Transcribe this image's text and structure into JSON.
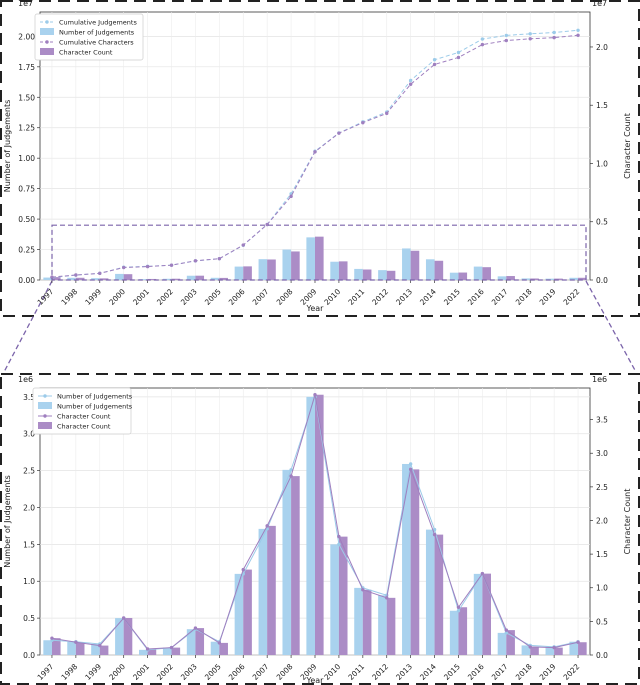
{
  "chart_data": [
    {
      "type": "bar",
      "xlabel": "Year",
      "ylabel": "Number of Judgements",
      "y2label": "Character Count",
      "y_scale_label": "1e7",
      "y2_scale_label": "1e7",
      "ylim": [
        0,
        2.2
      ],
      "y2lim": [
        0,
        2.3
      ],
      "y_ticks": [
        "0.00",
        "0.25",
        "0.50",
        "0.75",
        "1.00",
        "1.25",
        "1.50",
        "1.75",
        "2.00"
      ],
      "y2_ticks": [
        "0.0",
        "0.5",
        "1.0",
        "1.5",
        "2.0"
      ],
      "categories": [
        "1997",
        "1998",
        "1999",
        "2000",
        "2001",
        "2002",
        "2003",
        "2005",
        "2006",
        "2007",
        "2008",
        "2009",
        "2010",
        "2011",
        "2012",
        "2013",
        "2014",
        "2015",
        "2016",
        "2017",
        "2018",
        "2019",
        "2022"
      ],
      "series": [
        {
          "name": "Cumulative Judgements",
          "kind": "line",
          "axis": "left",
          "style": "dashed",
          "values": [
            0.02,
            0.04,
            0.055,
            0.105,
            0.112,
            0.122,
            0.157,
            0.175,
            0.285,
            0.456,
            0.707,
            1.057,
            1.207,
            1.298,
            1.379,
            1.638,
            1.808,
            1.868,
            1.978,
            2.008,
            2.021,
            2.032,
            2.05
          ]
        },
        {
          "name": "Number of Judgements",
          "kind": "bar",
          "axis": "left",
          "values": [
            0.02,
            0.018,
            0.015,
            0.05,
            0.007,
            0.01,
            0.035,
            0.018,
            0.11,
            0.171,
            0.25,
            0.35,
            0.15,
            0.091,
            0.081,
            0.259,
            0.17,
            0.06,
            0.11,
            0.03,
            0.013,
            0.011,
            0.018
          ]
        },
        {
          "name": "Cumulative Characters",
          "kind": "line",
          "axis": "right",
          "style": "dashed",
          "values": [
            0.025,
            0.043,
            0.057,
            0.107,
            0.115,
            0.127,
            0.165,
            0.183,
            0.3,
            0.476,
            0.718,
            1.1,
            1.26,
            1.35,
            1.43,
            1.68,
            1.85,
            1.91,
            2.02,
            2.055,
            2.07,
            2.08,
            2.1
          ]
        },
        {
          "name": "Character Count",
          "kind": "bar",
          "axis": "right",
          "values": [
            0.025,
            0.019,
            0.014,
            0.05,
            0.009,
            0.011,
            0.037,
            0.018,
            0.117,
            0.176,
            0.245,
            0.372,
            0.16,
            0.09,
            0.079,
            0.251,
            0.165,
            0.064,
            0.11,
            0.034,
            0.013,
            0.012,
            0.019
          ]
        }
      ],
      "legend": "top-left",
      "grid": true
    },
    {
      "type": "bar",
      "xlabel": "Year",
      "ylabel": "Number of Judgements",
      "y2label": "Character Count",
      "y_scale_label": "1e6",
      "y2_scale_label": "1e6",
      "ylim": [
        0,
        3.62
      ],
      "y2lim": [
        0,
        3.97
      ],
      "y_ticks": [
        "0.0",
        "0.5",
        "1.0",
        "1.5",
        "2.0",
        "2.5",
        "3.0",
        "3.5"
      ],
      "y2_ticks": [
        "0.0",
        "0.5",
        "1.0",
        "1.5",
        "2.0",
        "2.5",
        "3.0",
        "3.5"
      ],
      "categories": [
        "1997",
        "1998",
        "1999",
        "2000",
        "2001",
        "2002",
        "2003",
        "2005",
        "2006",
        "2007",
        "2008",
        "2009",
        "2010",
        "2011",
        "2012",
        "2013",
        "2014",
        "2015",
        "2016",
        "2017",
        "2018",
        "2019",
        "2022"
      ],
      "series": [
        {
          "name": "Number of Judgements",
          "kind": "line",
          "axis": "left",
          "values": [
            0.2,
            0.18,
            0.15,
            0.5,
            0.07,
            0.1,
            0.35,
            0.18,
            1.1,
            1.71,
            2.51,
            3.5,
            1.5,
            0.91,
            0.81,
            2.59,
            1.7,
            0.6,
            1.1,
            0.3,
            0.13,
            0.11,
            0.18
          ]
        },
        {
          "name": "Number of Judgements",
          "kind": "bar",
          "axis": "left",
          "values": [
            0.2,
            0.18,
            0.15,
            0.5,
            0.07,
            0.1,
            0.35,
            0.18,
            1.1,
            1.71,
            2.51,
            3.5,
            1.5,
            0.91,
            0.81,
            2.59,
            1.7,
            0.6,
            1.1,
            0.3,
            0.13,
            0.11,
            0.18
          ]
        },
        {
          "name": "Character Count",
          "kind": "line",
          "axis": "right",
          "values": [
            0.25,
            0.19,
            0.14,
            0.55,
            0.09,
            0.11,
            0.4,
            0.18,
            1.27,
            1.92,
            2.66,
            3.87,
            1.76,
            0.97,
            0.85,
            2.76,
            1.79,
            0.71,
            1.21,
            0.37,
            0.12,
            0.11,
            0.19
          ]
        },
        {
          "name": "Character Count",
          "kind": "bar",
          "axis": "right",
          "values": [
            0.25,
            0.19,
            0.14,
            0.55,
            0.09,
            0.11,
            0.4,
            0.18,
            1.27,
            1.92,
            2.66,
            3.87,
            1.76,
            0.97,
            0.85,
            2.76,
            1.79,
            0.71,
            1.21,
            0.37,
            0.12,
            0.11,
            0.19
          ]
        }
      ],
      "legend": "top-left",
      "grid": true
    }
  ],
  "colors": {
    "judgements": "#a9d2ee",
    "characters": "#ab8cc6",
    "cum_judgements": "#9ccbe9",
    "cum_characters": "#9f7fbf",
    "frame": "#222222",
    "zoom": "#7b64aa"
  }
}
